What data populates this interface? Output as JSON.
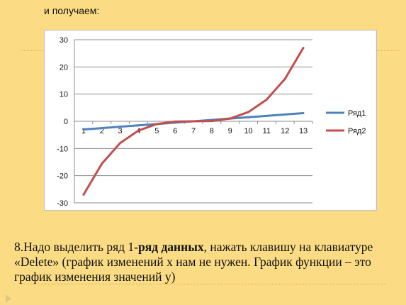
{
  "header": {
    "text": "и получаем:"
  },
  "chart_data": {
    "type": "line",
    "categories": [
      "1",
      "2",
      "3",
      "4",
      "5",
      "6",
      "7",
      "8",
      "9",
      "10",
      "11",
      "12",
      "13"
    ],
    "series": [
      {
        "name": "Ряд1",
        "color": "#4f81bd",
        "values": [
          -3,
          -2.5,
          -2,
          -1.5,
          -1,
          -0.5,
          0,
          0.5,
          1,
          1.5,
          2,
          2.5,
          3
        ]
      },
      {
        "name": "Ряд2",
        "color": "#c0504d",
        "values": [
          -27,
          -15.6,
          -8,
          -3.4,
          -1,
          -0.1,
          0,
          0.1,
          1,
          3.4,
          8,
          15.6,
          27
        ]
      }
    ],
    "ylim": [
      -30,
      30
    ],
    "yticks": [
      30,
      20,
      10,
      0,
      -10,
      -20,
      -30
    ],
    "grid": true,
    "legend": "right",
    "title": "",
    "xlabel": "",
    "ylabel": ""
  },
  "footer": {
    "part1": "8.Надо выделить ряд 1-",
    "bold": "ряд данных",
    "part2": ", нажать клавишу на клавиатуре «Delete» (график изменений х нам не нужен. График функции – это график изменения значений у)"
  }
}
